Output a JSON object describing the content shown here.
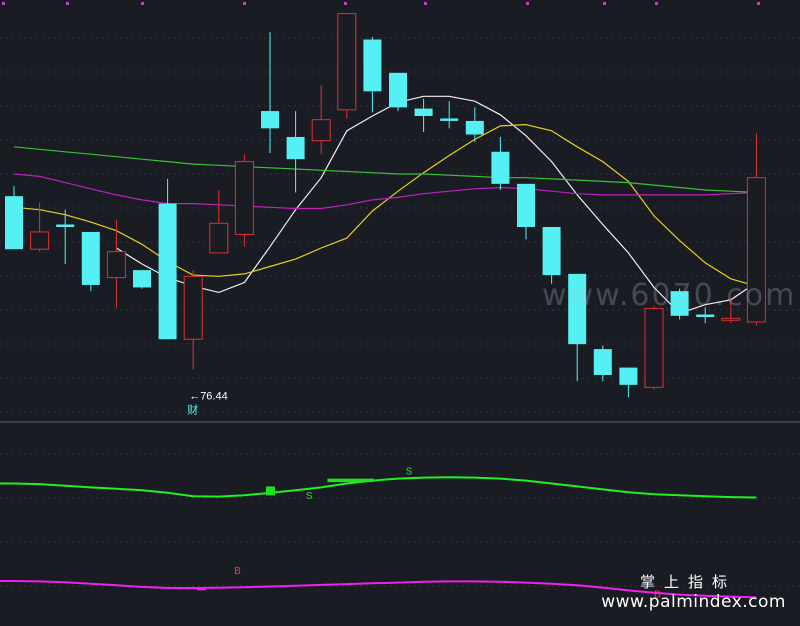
{
  "colors": {
    "background": "#1a1c24",
    "grid": "#2f3340",
    "up": "#e03030",
    "down": "#55f0f4",
    "ma_white": "#f0f0f0",
    "ma_yellow": "#e8d020",
    "ma_green": "#38c038",
    "ma_magenta": "#c020c0",
    "ind_green": "#20f020",
    "ind_magenta": "#f020f0",
    "flag_sell": "#20e020",
    "flag_buy": "#f04040",
    "label": "#ffffff"
  },
  "chart_data": [
    {
      "type": "candlestick",
      "panel": "price",
      "ylim": [
        73,
        106
      ],
      "grid": true,
      "candles": [
        {
          "o": 90.5,
          "c": 86.2,
          "h": 91.3,
          "l": 86.2
        },
        {
          "o": 86.2,
          "c": 87.6,
          "h": 90.0,
          "l": 86.0
        },
        {
          "o": 88.2,
          "c": 88.0,
          "h": 89.4,
          "l": 85.0
        },
        {
          "o": 87.6,
          "c": 83.3,
          "h": 87.6,
          "l": 82.8
        },
        {
          "o": 83.9,
          "c": 86.0,
          "h": 88.6,
          "l": 81.4
        },
        {
          "o": 84.5,
          "c": 83.1,
          "h": 84.5,
          "l": 83.0
        },
        {
          "o": 89.9,
          "c": 78.9,
          "h": 91.9,
          "l": 78.9
        },
        {
          "o": 78.9,
          "c": 84.0,
          "h": 84.5,
          "l": 76.44
        },
        {
          "o": 85.9,
          "c": 88.3,
          "h": 91.0,
          "l": 85.9
        },
        {
          "o": 87.4,
          "c": 93.3,
          "h": 93.9,
          "l": 86.4
        },
        {
          "o": 97.4,
          "c": 96.0,
          "h": 103.8,
          "l": 94.0
        },
        {
          "o": 95.3,
          "c": 93.5,
          "h": 97.4,
          "l": 90.8
        },
        {
          "o": 95.0,
          "c": 96.7,
          "h": 99.5,
          "l": 93.9
        },
        {
          "o": 97.5,
          "c": 105.3,
          "h": 105.3,
          "l": 96.8
        },
        {
          "o": 103.2,
          "c": 99.0,
          "h": 103.4,
          "l": 97.3
        },
        {
          "o": 100.5,
          "c": 97.7,
          "h": 100.5,
          "l": 97.4
        },
        {
          "o": 97.6,
          "c": 97.0,
          "h": 98.4,
          "l": 95.7
        },
        {
          "o": 96.8,
          "c": 96.6,
          "h": 98.2,
          "l": 96.0
        },
        {
          "o": 96.6,
          "c": 95.5,
          "h": 97.7,
          "l": 94.9
        },
        {
          "o": 94.1,
          "c": 91.5,
          "h": 95.3,
          "l": 91.0
        },
        {
          "o": 91.5,
          "c": 88.0,
          "h": 91.5,
          "l": 87.0
        },
        {
          "o": 88.0,
          "c": 84.1,
          "h": 88.0,
          "l": 83.4
        },
        {
          "o": 84.2,
          "c": 78.5,
          "h": 84.2,
          "l": 75.5
        },
        {
          "o": 78.1,
          "c": 76.0,
          "h": 78.4,
          "l": 75.5
        },
        {
          "o": 76.6,
          "c": 75.2,
          "h": 76.6,
          "l": 74.2
        },
        {
          "o": 75.0,
          "c": 81.4,
          "h": 81.6,
          "l": 74.8
        },
        {
          "o": 82.8,
          "c": 80.8,
          "h": 83.0,
          "l": 80.5
        },
        {
          "o": 80.9,
          "c": 80.7,
          "h": 81.5,
          "l": 80.2
        },
        {
          "o": 80.6,
          "c": 80.6,
          "h": 82.2,
          "l": 80.2
        },
        {
          "o": 80.3,
          "c": 92.0,
          "h": 95.6,
          "l": 80.0
        }
      ],
      "moving_averages": [
        {
          "color": "#f0f0f0",
          "values": [
            null,
            null,
            null,
            null,
            86.3,
            85.0,
            83.9,
            83.2,
            82.7,
            83.5,
            86.4,
            89.4,
            92.0,
            95.8,
            97.0,
            98.1,
            98.6,
            98.6,
            98.2,
            97.1,
            95.4,
            93.3,
            90.6,
            88.2,
            85.9,
            83.1,
            81.0,
            81.7,
            82.1,
            83.5
          ]
        },
        {
          "color": "#e8d020",
          "values": [
            89.6,
            89.4,
            89.0,
            88.4,
            87.7,
            86.6,
            85.2,
            84.1,
            84.0,
            84.2,
            84.8,
            85.4,
            86.3,
            87.1,
            89.3,
            90.9,
            92.4,
            93.8,
            95.1,
            96.2,
            96.3,
            95.8,
            94.5,
            93.3,
            91.7,
            88.9,
            86.9,
            85.1,
            83.8,
            83.2
          ]
        },
        {
          "color": "#38c038",
          "values": [
            94.5,
            94.3,
            94.1,
            93.9,
            93.7,
            93.5,
            93.3,
            93.1,
            93.0,
            92.9,
            92.8,
            92.7,
            92.6,
            92.5,
            92.4,
            92.3,
            92.3,
            92.2,
            92.1,
            92.0,
            92.0,
            91.9,
            91.8,
            91.7,
            91.6,
            91.4,
            91.2,
            91.0,
            90.9,
            90.8
          ]
        },
        {
          "color": "#c020c0",
          "values": [
            92.3,
            92.1,
            91.6,
            91.1,
            90.6,
            90.2,
            89.9,
            89.9,
            89.8,
            89.7,
            89.6,
            89.5,
            89.5,
            89.8,
            90.2,
            90.4,
            90.7,
            90.9,
            91.1,
            91.2,
            91.1,
            90.9,
            90.7,
            90.6,
            90.6,
            90.6,
            90.6,
            90.6,
            90.7,
            90.8
          ]
        }
      ],
      "low_annotation": {
        "candle": 7,
        "text": "76.44",
        "tag": "财"
      }
    },
    {
      "type": "line",
      "panel": "indicator",
      "ylim": [
        0,
        100
      ],
      "grid": true,
      "series": [
        {
          "color": "#20f020",
          "values": [
            70,
            69.7,
            68.8,
            68.0,
            67.3,
            66.5,
            65.3,
            63.5,
            63.3,
            64.0,
            65.2,
            66.5,
            68.0,
            70.0,
            71.5,
            72.5,
            73.0,
            73.2,
            73.0,
            72.5,
            71.5,
            70.0,
            68.5,
            67.0,
            65.5,
            64.5,
            64.0,
            63.5,
            63.0,
            62.8
          ]
        },
        {
          "color": "#f020f0",
          "values": [
            20,
            19.8,
            19.4,
            18.6,
            17.8,
            17.0,
            16.4,
            16.4,
            16.5,
            16.8,
            17.2,
            17.6,
            18.0,
            18.4,
            18.8,
            19.2,
            19.6,
            19.8,
            19.8,
            19.6,
            19.2,
            18.6,
            17.8,
            16.6,
            15.2,
            14.0,
            13.0,
            12.4,
            12.0,
            11.6
          ]
        }
      ],
      "bars": [
        {
          "i": 10,
          "v0": 63.9,
          "v1": 68.5,
          "color": "#20e020"
        },
        {
          "i": 12.4,
          "v0": 70.7,
          "v1": 72.5,
          "color": "#20e020",
          "i2": 13.9
        },
        {
          "i": 7.3,
          "v0": 15.2,
          "v1": 16.6,
          "color": "#f020f0"
        }
      ],
      "flags": [
        {
          "i": 15.3,
          "v": 74.5,
          "text": "S",
          "color": "#20e020"
        },
        {
          "i": 11.4,
          "v": 62.0,
          "text": "S",
          "color": "#20e020"
        },
        {
          "i": 8.6,
          "v": 23.5,
          "text": "B",
          "color": "#f04040"
        },
        {
          "i": 25.0,
          "v": 11.5,
          "text": "B",
          "color": "#f04040"
        }
      ]
    }
  ],
  "watermark": {
    "site": "www.palmindex.com",
    "title_cn": "掌上指标",
    "mid": "www.6070.com"
  }
}
